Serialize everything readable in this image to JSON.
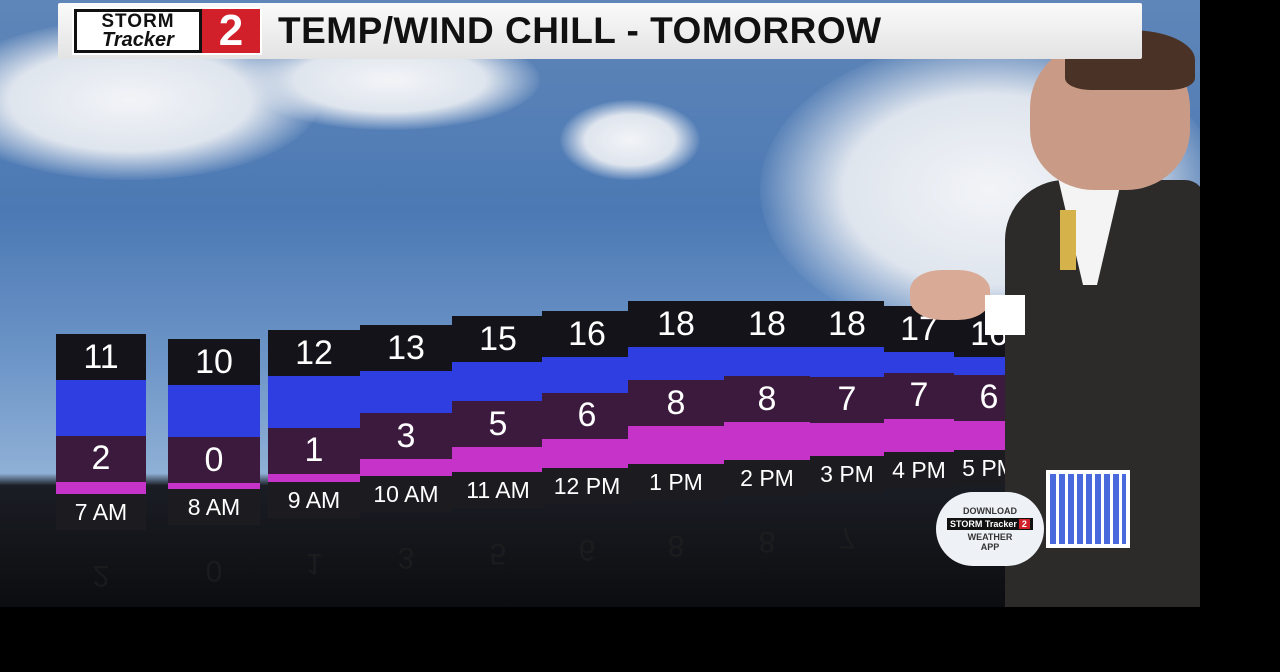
{
  "header": {
    "logo_text_1": "STORM",
    "logo_text_2": "Tracker",
    "logo_number": "2",
    "title": "TEMP/WIND CHILL - TOMORROW"
  },
  "chart_data": {
    "type": "bar",
    "title": "TEMP/WIND CHILL - TOMORROW",
    "categories": [
      "7 AM",
      "8 AM",
      "9 AM",
      "10 AM",
      "11 AM",
      "12 PM",
      "1 PM",
      "2 PM",
      "3 PM",
      "4 PM",
      "5 PM"
    ],
    "series": [
      {
        "name": "Temp",
        "values": [
          11,
          10,
          12,
          13,
          15,
          16,
          18,
          18,
          18,
          17,
          16
        ]
      },
      {
        "name": "Wind Chill",
        "values": [
          2,
          0,
          1,
          3,
          5,
          6,
          8,
          8,
          7,
          7,
          6
        ]
      }
    ]
  },
  "app_promo": {
    "line1": "DOWNLOAD",
    "logo_1": "STORM Tracker",
    "logo_2": "2",
    "line2": "WEATHER",
    "line3": "APP"
  },
  "colors": {
    "temp_box": "#15131a",
    "blue_band": "#2e3ee0",
    "windchill_box": "#3c1a3e",
    "pink_band": "#c633c9",
    "logo_red": "#d1202a"
  }
}
